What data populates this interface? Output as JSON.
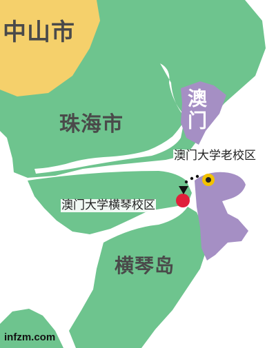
{
  "map": {
    "labels": {
      "zhongshan": "中山市",
      "zhuhai": "珠海市",
      "macau": "澳门",
      "old_campus": "澳门大学老校区",
      "new_campus": "澳门大学横琴校区",
      "hengqin": "横琴岛"
    },
    "credit": "infzm.com",
    "colors": {
      "zhongshan": "#f5d06b",
      "zhuhai": "#6ec48e",
      "macau": "#a58fc4",
      "sea": "#ffffff",
      "old_campus_marker": "#f2c200",
      "new_campus_marker": "#e0203a"
    },
    "markers": [
      "old-campus-marker",
      "new-campus-marker",
      "relocation-arrow"
    ]
  }
}
